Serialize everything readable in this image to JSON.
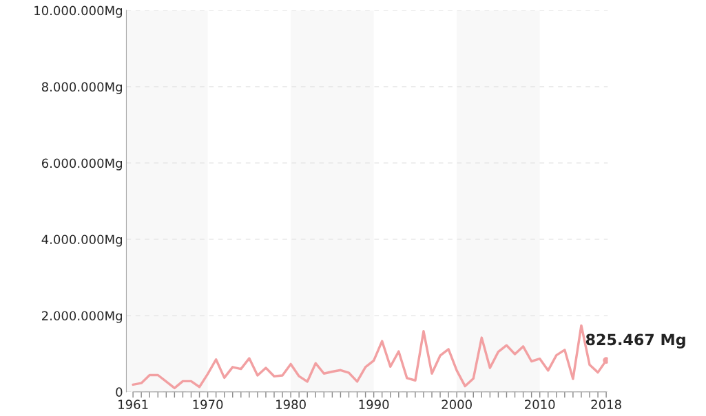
{
  "chart_data": {
    "type": "line",
    "x": [
      1961,
      1962,
      1963,
      1964,
      1965,
      1966,
      1967,
      1968,
      1969,
      1970,
      1971,
      1972,
      1973,
      1974,
      1975,
      1976,
      1977,
      1978,
      1979,
      1980,
      1981,
      1982,
      1983,
      1984,
      1985,
      1986,
      1987,
      1988,
      1989,
      1990,
      1991,
      1992,
      1993,
      1994,
      1995,
      1996,
      1997,
      1998,
      1999,
      2000,
      2001,
      2002,
      2003,
      2004,
      2005,
      2006,
      2007,
      2008,
      2009,
      2010,
      2011,
      2012,
      2013,
      2014,
      2015,
      2016,
      2017,
      2018
    ],
    "series": [
      {
        "color": "#f2a0a2",
        "values": [
          190000,
          230000,
          440000,
          440000,
          270000,
          100000,
          280000,
          280000,
          130000,
          470000,
          850000,
          370000,
          650000,
          600000,
          880000,
          430000,
          630000,
          410000,
          430000,
          730000,
          410000,
          270000,
          750000,
          480000,
          530000,
          570000,
          500000,
          270000,
          650000,
          820000,
          1330000,
          660000,
          1060000,
          360000,
          300000,
          1590000,
          480000,
          950000,
          1120000,
          560000,
          150000,
          350000,
          1420000,
          630000,
          1050000,
          1220000,
          990000,
          1190000,
          800000,
          870000,
          560000,
          960000,
          1100000,
          340000,
          1740000,
          710000,
          510000,
          825467
        ]
      }
    ],
    "xlim": [
      1960.2,
      2018.2
    ],
    "xticks": [
      1961,
      {
        "value": 1962,
        "label": null
      },
      {
        "value": 1963,
        "label": null
      },
      {
        "value": 1964,
        "label": null
      },
      {
        "value": 1965,
        "label": null
      },
      {
        "value": 1966,
        "label": null
      },
      {
        "value": 1967,
        "label": null
      },
      {
        "value": 1968,
        "label": null
      },
      {
        "value": 1969,
        "label": null
      },
      1970,
      {
        "value": 1971,
        "label": null
      },
      {
        "value": 1972,
        "label": null
      },
      {
        "value": 1973,
        "label": null
      },
      {
        "value": 1974,
        "label": null
      },
      {
        "value": 1975,
        "label": null
      },
      {
        "value": 1976,
        "label": null
      },
      {
        "value": 1977,
        "label": null
      },
      {
        "value": 1978,
        "label": null
      },
      {
        "value": 1979,
        "label": null
      },
      1980,
      {
        "value": 1981,
        "label": null
      },
      {
        "value": 1982,
        "label": null
      },
      {
        "value": 1983,
        "label": null
      },
      {
        "value": 1984,
        "label": null
      },
      {
        "value": 1985,
        "label": null
      },
      {
        "value": 1986,
        "label": null
      },
      {
        "value": 1987,
        "label": null
      },
      {
        "value": 1988,
        "label": null
      },
      {
        "value": 1989,
        "label": null
      },
      1990,
      {
        "value": 1991,
        "label": null
      },
      {
        "value": 1992,
        "label": null
      },
      {
        "value": 1993,
        "label": null
      },
      {
        "value": 1994,
        "label": null
      },
      {
        "value": 1995,
        "label": null
      },
      {
        "value": 1996,
        "label": null
      },
      {
        "value": 1997,
        "label": null
      },
      {
        "value": 1998,
        "label": null
      },
      {
        "value": 1999,
        "label": null
      },
      2000,
      {
        "value": 2001,
        "label": null
      },
      {
        "value": 2002,
        "label": null
      },
      {
        "value": 2003,
        "label": null
      },
      {
        "value": 2004,
        "label": null
      },
      {
        "value": 2005,
        "label": null
      },
      {
        "value": 2006,
        "label": null
      },
      {
        "value": 2007,
        "label": null
      },
      {
        "value": 2008,
        "label": null
      },
      {
        "value": 2009,
        "label": null
      },
      2010,
      {
        "value": 2011,
        "label": null
      },
      {
        "value": 2012,
        "label": null
      },
      {
        "value": 2013,
        "label": null
      },
      {
        "value": 2014,
        "label": null
      },
      {
        "value": 2015,
        "label": null
      },
      {
        "value": 2016,
        "label": null
      },
      {
        "value": 2017,
        "label": null
      },
      2018
    ],
    "ylim": [
      0,
      10000000
    ],
    "yticks": [
      0,
      {
        "value": 2000000,
        "label": "2.000.000Mg"
      },
      {
        "value": 4000000,
        "label": "4.000.000Mg"
      },
      {
        "value": 6000000,
        "label": "6.000.000Mg"
      },
      {
        "value": 8000000,
        "label": "8.000.000Mg"
      },
      {
        "value": 10000000,
        "label": "10.000.000Mg"
      }
    ],
    "grid": "y",
    "line_style": "solid",
    "bands": [
      {
        "axis": "x",
        "from": 1960.2,
        "to": 1970,
        "color": "#f8f8f8"
      },
      {
        "axis": "x",
        "from": 1980,
        "to": 1990,
        "color": "#f8f8f8"
      },
      {
        "axis": "x",
        "from": 2000,
        "to": 2010,
        "color": "#f8f8f8"
      }
    ],
    "annotations": [
      {
        "text": "825.467 Mg",
        "x": 2018,
        "y": 825467
      }
    ]
  }
}
